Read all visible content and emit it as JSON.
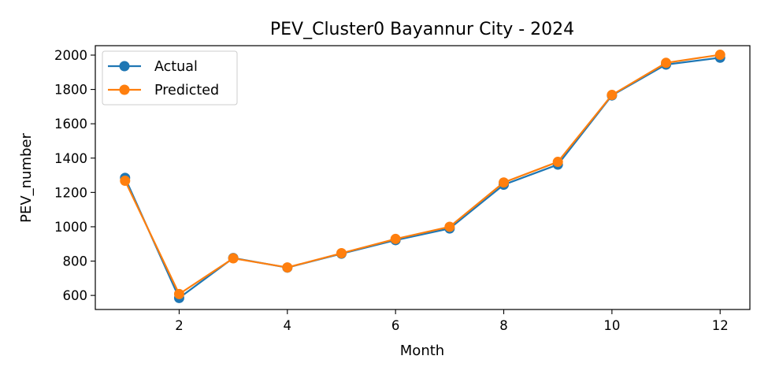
{
  "chart_data": {
    "type": "line",
    "title": "PEV_Cluster0 Bayannur City - 2024",
    "xlabel": "Month",
    "ylabel": "PEV_number",
    "x": [
      1,
      2,
      3,
      4,
      5,
      6,
      7,
      8,
      9,
      10,
      11,
      12
    ],
    "xlim": [
      0.45,
      12.55
    ],
    "ylim": [
      518,
      2055
    ],
    "xticks": [
      2,
      4,
      6,
      8,
      10,
      12
    ],
    "xtick_labels": [
      "2",
      "4",
      "6",
      "8",
      "10",
      "12"
    ],
    "yticks": [
      600,
      800,
      1000,
      1200,
      1400,
      1600,
      1800,
      2000
    ],
    "ytick_labels": [
      "600",
      "800",
      "1000",
      "1200",
      "1400",
      "1600",
      "1800",
      "2000"
    ],
    "grid": false,
    "legend_position": "upper-left",
    "series": [
      {
        "name": "Actual",
        "color": "#1f77b4",
        "marker": "circle",
        "values": [
          1285,
          585,
          818,
          762,
          843,
          922,
          990,
          1245,
          1362,
          1765,
          1945,
          1985
        ]
      },
      {
        "name": "Predicted",
        "color": "#ff7f0e",
        "marker": "circle",
        "values": [
          1268,
          608,
          816,
          763,
          846,
          929,
          1000,
          1258,
          1378,
          1768,
          1955,
          2002
        ]
      }
    ]
  }
}
